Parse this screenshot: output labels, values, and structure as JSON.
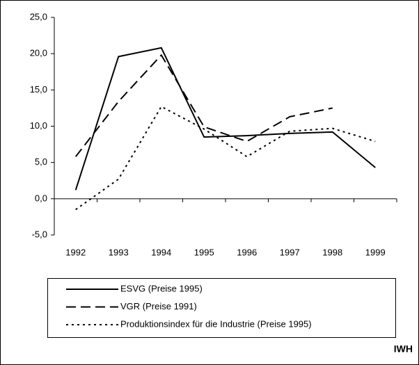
{
  "chart_data": {
    "type": "line",
    "categories": [
      "1992",
      "1993",
      "1994",
      "1995",
      "1996",
      "1997",
      "1998",
      "1999"
    ],
    "series": [
      {
        "name": "ESVG (Preise 1995)",
        "color": "#000000",
        "dash": "solid",
        "values": [
          1.2,
          19.6,
          20.8,
          8.5,
          8.7,
          9.0,
          9.2,
          4.3
        ]
      },
      {
        "name": "VGR (Preise 1991)",
        "color": "#000000",
        "dash": "dashed",
        "values": [
          5.8,
          13.4,
          19.8,
          9.9,
          7.9,
          11.3,
          12.5,
          null
        ]
      },
      {
        "name": "Produktionsindex für die Industrie (Preise 1995)",
        "color": "#000000",
        "dash": "dotted",
        "values": [
          -1.5,
          2.7,
          12.7,
          9.6,
          5.8,
          9.3,
          9.7,
          7.9
        ]
      }
    ],
    "ylim": [
      -5,
      25
    ],
    "yticks": [
      {
        "value": 25,
        "label": "25,0"
      },
      {
        "value": 20,
        "label": "20,0"
      },
      {
        "value": 15,
        "label": "15,0"
      },
      {
        "value": 10,
        "label": "10,0"
      },
      {
        "value": 5,
        "label": "5,0"
      },
      {
        "value": 0,
        "label": "0,0"
      },
      {
        "value": -5,
        "label": "-5,0"
      }
    ],
    "grid": false,
    "source": "IWH"
  }
}
